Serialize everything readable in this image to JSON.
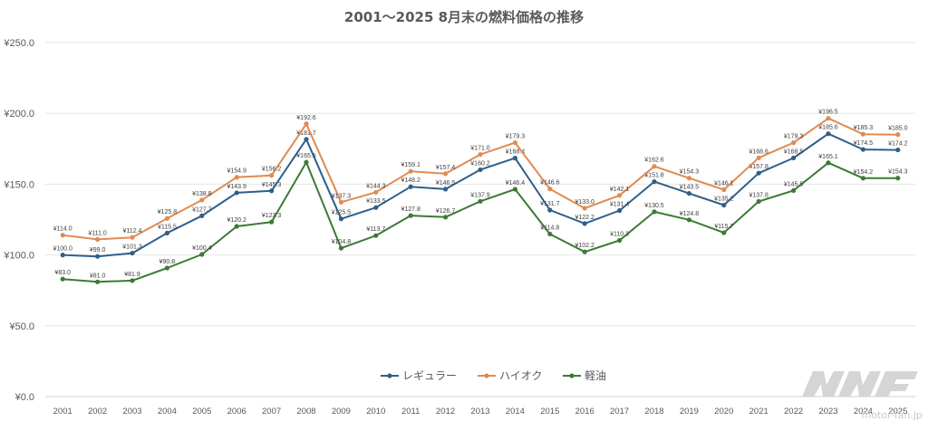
{
  "chart_data": {
    "type": "line",
    "title": "2001〜2025 8月末の燃料価格の推移",
    "categories": [
      "2001",
      "2002",
      "2003",
      "2004",
      "2005",
      "2006",
      "2007",
      "2008",
      "2009",
      "2010",
      "2011",
      "2012",
      "2013",
      "2014",
      "2015",
      "2016",
      "2017",
      "2018",
      "2019",
      "2020",
      "2021",
      "2022",
      "2023",
      "2024",
      "2025"
    ],
    "ylim": [
      0,
      250
    ],
    "yticks": [
      "¥0.0",
      "¥50.0",
      "¥100.0",
      "¥150.0",
      "¥200.0",
      "¥250.0"
    ],
    "grid": true,
    "legend_position": "bottom",
    "series": [
      {
        "name": "レギュラー",
        "color": "#2e5f8a",
        "values": [
          100.0,
          99.0,
          101.3,
          115.5,
          127.7,
          143.9,
          145.3,
          181.7,
          125.5,
          133.5,
          148.2,
          146.5,
          160.2,
          168.4,
          131.7,
          122.2,
          131.4,
          151.8,
          143.5,
          135.2,
          157.8,
          168.5,
          185.6,
          174.5,
          174.2
        ],
        "labels": [
          "¥100.0",
          "¥99.0",
          "¥101.3",
          "¥115.5",
          "¥127.7",
          "¥143.9",
          "¥145.3",
          "¥181.7",
          "¥125.5",
          "¥133.5",
          "¥148.2",
          "¥146.5",
          "¥160.2",
          "¥168.4",
          "¥131.7",
          "¥122.2",
          "¥131.4",
          "¥151.8",
          "¥143.5",
          "¥135.2",
          "¥157.8",
          "¥168.5",
          "¥185.6",
          "¥174.5",
          "¥174.2"
        ]
      },
      {
        "name": "ハイオク",
        "color": "#e08b52",
        "values": [
          114.0,
          111.0,
          112.4,
          125.8,
          138.8,
          154.9,
          156.2,
          192.6,
          137.3,
          144.3,
          159.1,
          157.4,
          171.0,
          179.3,
          146.6,
          133.0,
          142.1,
          162.6,
          154.3,
          146.1,
          168.6,
          179.3,
          196.5,
          185.3,
          185.0
        ],
        "labels": [
          "¥114.0",
          "¥111.0",
          "¥112.4",
          "¥125.8",
          "¥138.8",
          "¥154.9",
          "¥156.2",
          "¥192.6",
          "¥137.3",
          "¥144.3",
          "¥159.1",
          "¥157.4",
          "¥171.0",
          "¥179.3",
          "¥146.6",
          "¥133.0",
          "¥142.1",
          "¥162.6",
          "¥154.3",
          "¥146.1",
          "¥168.6",
          "¥179.3",
          "¥196.5",
          "¥185.3",
          "¥185.0"
        ]
      },
      {
        "name": "軽油",
        "color": "#3c7a35",
        "values": [
          83.0,
          81.0,
          81.9,
          90.8,
          100.4,
          120.2,
          123.3,
          165.5,
          104.8,
          113.7,
          127.8,
          126.7,
          137.9,
          146.4,
          114.8,
          102.2,
          110.3,
          130.5,
          124.8,
          115.7,
          137.8,
          145.5,
          165.1,
          154.2,
          154.3
        ],
        "labels": [
          "¥83.0",
          "¥81.0",
          "¥81.9",
          "¥90.8",
          "¥100.4",
          "¥120.2",
          "¥123.3",
          "¥165.5",
          "¥104.8",
          "¥113.7",
          "¥127.8",
          "¥126.7",
          "¥137.9",
          "¥146.4",
          "¥114.8",
          "¥102.2",
          "¥110.3",
          "¥130.5",
          "¥124.8",
          "¥115.7",
          "¥137.8",
          "¥145.5",
          "¥165.1",
          "¥154.2",
          "¥154.3"
        ]
      }
    ]
  },
  "watermark": {
    "text": "motor-fan.jp",
    "color": "#c8c8c8"
  }
}
